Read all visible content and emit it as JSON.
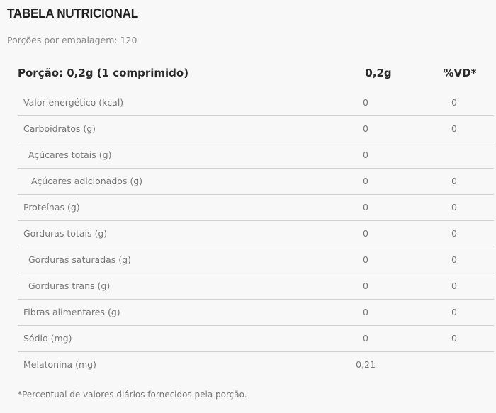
{
  "title": "TABELA NUTRICIONAL",
  "servings": "Porções por embalagem: 120",
  "header": {
    "portion": "Porção: 0,2g (1 comprimido)",
    "amount": "0,2g",
    "vd": "%VD*"
  },
  "rows": [
    {
      "label": "Valor energético (kcal)",
      "value": "0",
      "vd": "0"
    },
    {
      "label": "Carboidratos (g)",
      "value": "0",
      "vd": "0"
    },
    {
      "label": "Açúcares totais (g)",
      "value": "0",
      "vd": ""
    },
    {
      "label": "Açúcares adicionados (g)",
      "value": "0",
      "vd": "0"
    },
    {
      "label": "Proteínas (g)",
      "value": "0",
      "vd": "0"
    },
    {
      "label": "Gorduras totais (g)",
      "value": "0",
      "vd": "0"
    },
    {
      "label": "Gorduras saturadas (g)",
      "value": "0",
      "vd": "0"
    },
    {
      "label": "Gorduras trans (g)",
      "value": "0",
      "vd": "0"
    },
    {
      "label": "Fibras alimentares (g)",
      "value": "0",
      "vd": "0"
    },
    {
      "label": "Sódio (mg)",
      "value": "0",
      "vd": "0"
    },
    {
      "label": "Melatonina (mg)",
      "value": "0,21",
      "vd": ""
    }
  ],
  "footnote": "*Percentual de valores diários fornecidos pela porção."
}
